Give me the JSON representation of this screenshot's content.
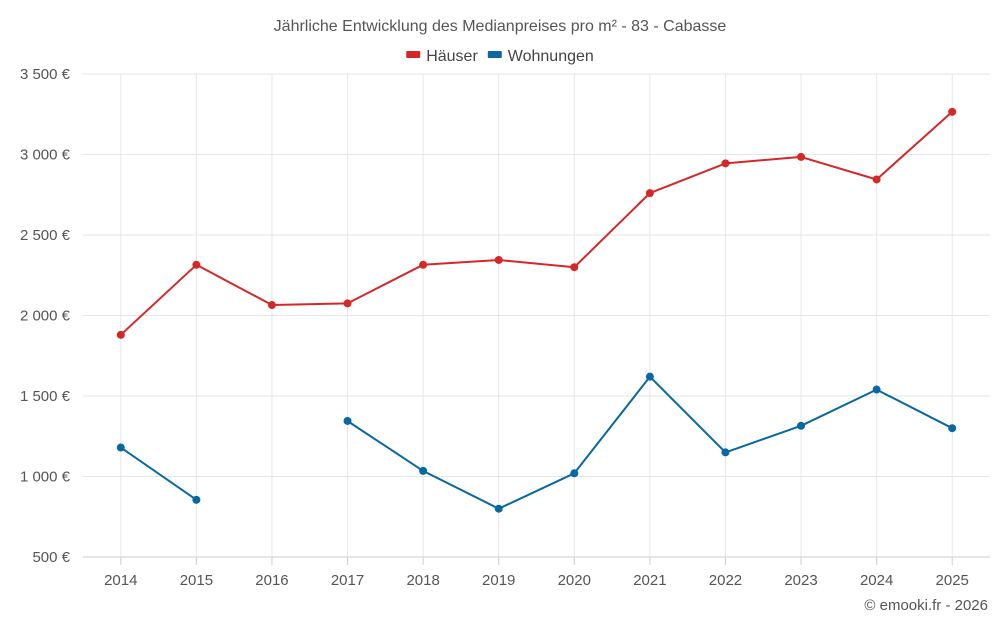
{
  "chart_data": {
    "type": "line",
    "title": "Jährliche Entwicklung des Medianpreises pro m² - 83 - Cabasse",
    "categories": [
      "2014",
      "2015",
      "2016",
      "2017",
      "2018",
      "2019",
      "2020",
      "2021",
      "2022",
      "2023",
      "2024",
      "2025"
    ],
    "series": [
      {
        "name": "Häuser",
        "color": "#d62728",
        "values": [
          1880,
          2315,
          2065,
          2075,
          2315,
          2345,
          2300,
          2760,
          2945,
          2985,
          2845,
          3265
        ]
      },
      {
        "name": "Wohnungen",
        "color": "#0868a0",
        "values": [
          1180,
          855,
          null,
          1345,
          1035,
          800,
          1020,
          1620,
          1150,
          1315,
          1540,
          1300
        ]
      }
    ],
    "ylim": [
      500,
      3500
    ],
    "yticks": [
      500,
      1000,
      1500,
      2000,
      2500,
      3000,
      3500
    ],
    "ytick_labels": [
      "500 €",
      "1 000 €",
      "1 500 €",
      "2 000 €",
      "2 500 €",
      "3 000 €",
      "3 500 €"
    ],
    "xlabel": "",
    "ylabel": "",
    "legend_position": "top-center",
    "grid": true
  },
  "footer": {
    "copyright": "© emooki.fr - 2026"
  }
}
